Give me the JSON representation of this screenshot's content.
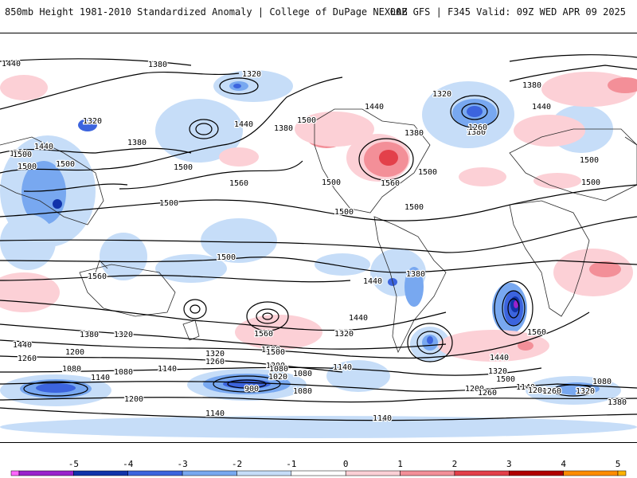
{
  "header": {
    "title": "850mb Height 1981-2010 Standardized Anomaly | College of DuPage NEXLAB",
    "valid": "00Z GFS | F345 Valid: 09Z WED APR 09 2025"
  },
  "colors": {
    "anomaly_scale": [
      "#ff66ff",
      "#9a22cc",
      "#1133aa",
      "#3c64de",
      "#78a8f0",
      "#c6ddf8",
      "#ffffff",
      "#fcd0d6",
      "#f38f98",
      "#e3404a",
      "#b00000",
      "#ff8c00",
      "#ffb300"
    ],
    "contour": "#000000",
    "coastline": "#2a2a2a"
  },
  "colorbar": {
    "labels": [
      "-5",
      "-4",
      "-3",
      "-2",
      "-1",
      "0",
      "1",
      "2",
      "3",
      "4",
      "5"
    ]
  },
  "contour_labels": [
    "1380",
    "1440",
    "1320",
    "1380",
    "1320",
    "1440",
    "1380",
    "1440",
    "1500",
    "1380",
    "1260",
    "1440",
    "1380",
    "1440",
    "1320",
    "1380",
    "1440",
    "1500",
    "1560",
    "1500",
    "1500",
    "1560",
    "1500",
    "1500",
    "1500",
    "1500",
    "1500",
    "1500",
    "1500",
    "1500",
    "1500",
    "1560",
    "1440",
    "1380",
    "1320",
    "1440",
    "1560",
    "1500",
    "1440",
    "1320",
    "1560",
    "1440",
    "1260",
    "1200",
    "1260",
    "1500",
    "1380",
    "1320",
    "1200",
    "1080",
    "1140",
    "1080",
    "1140",
    "1020",
    "1080",
    "900",
    "1080",
    "1140",
    "1200",
    "1260",
    "1320",
    "1140",
    "1200",
    "1260",
    "1080",
    "1380",
    "1320",
    "1140",
    "1080",
    "1200",
    "1140",
    "1500",
    "1440"
  ]
}
